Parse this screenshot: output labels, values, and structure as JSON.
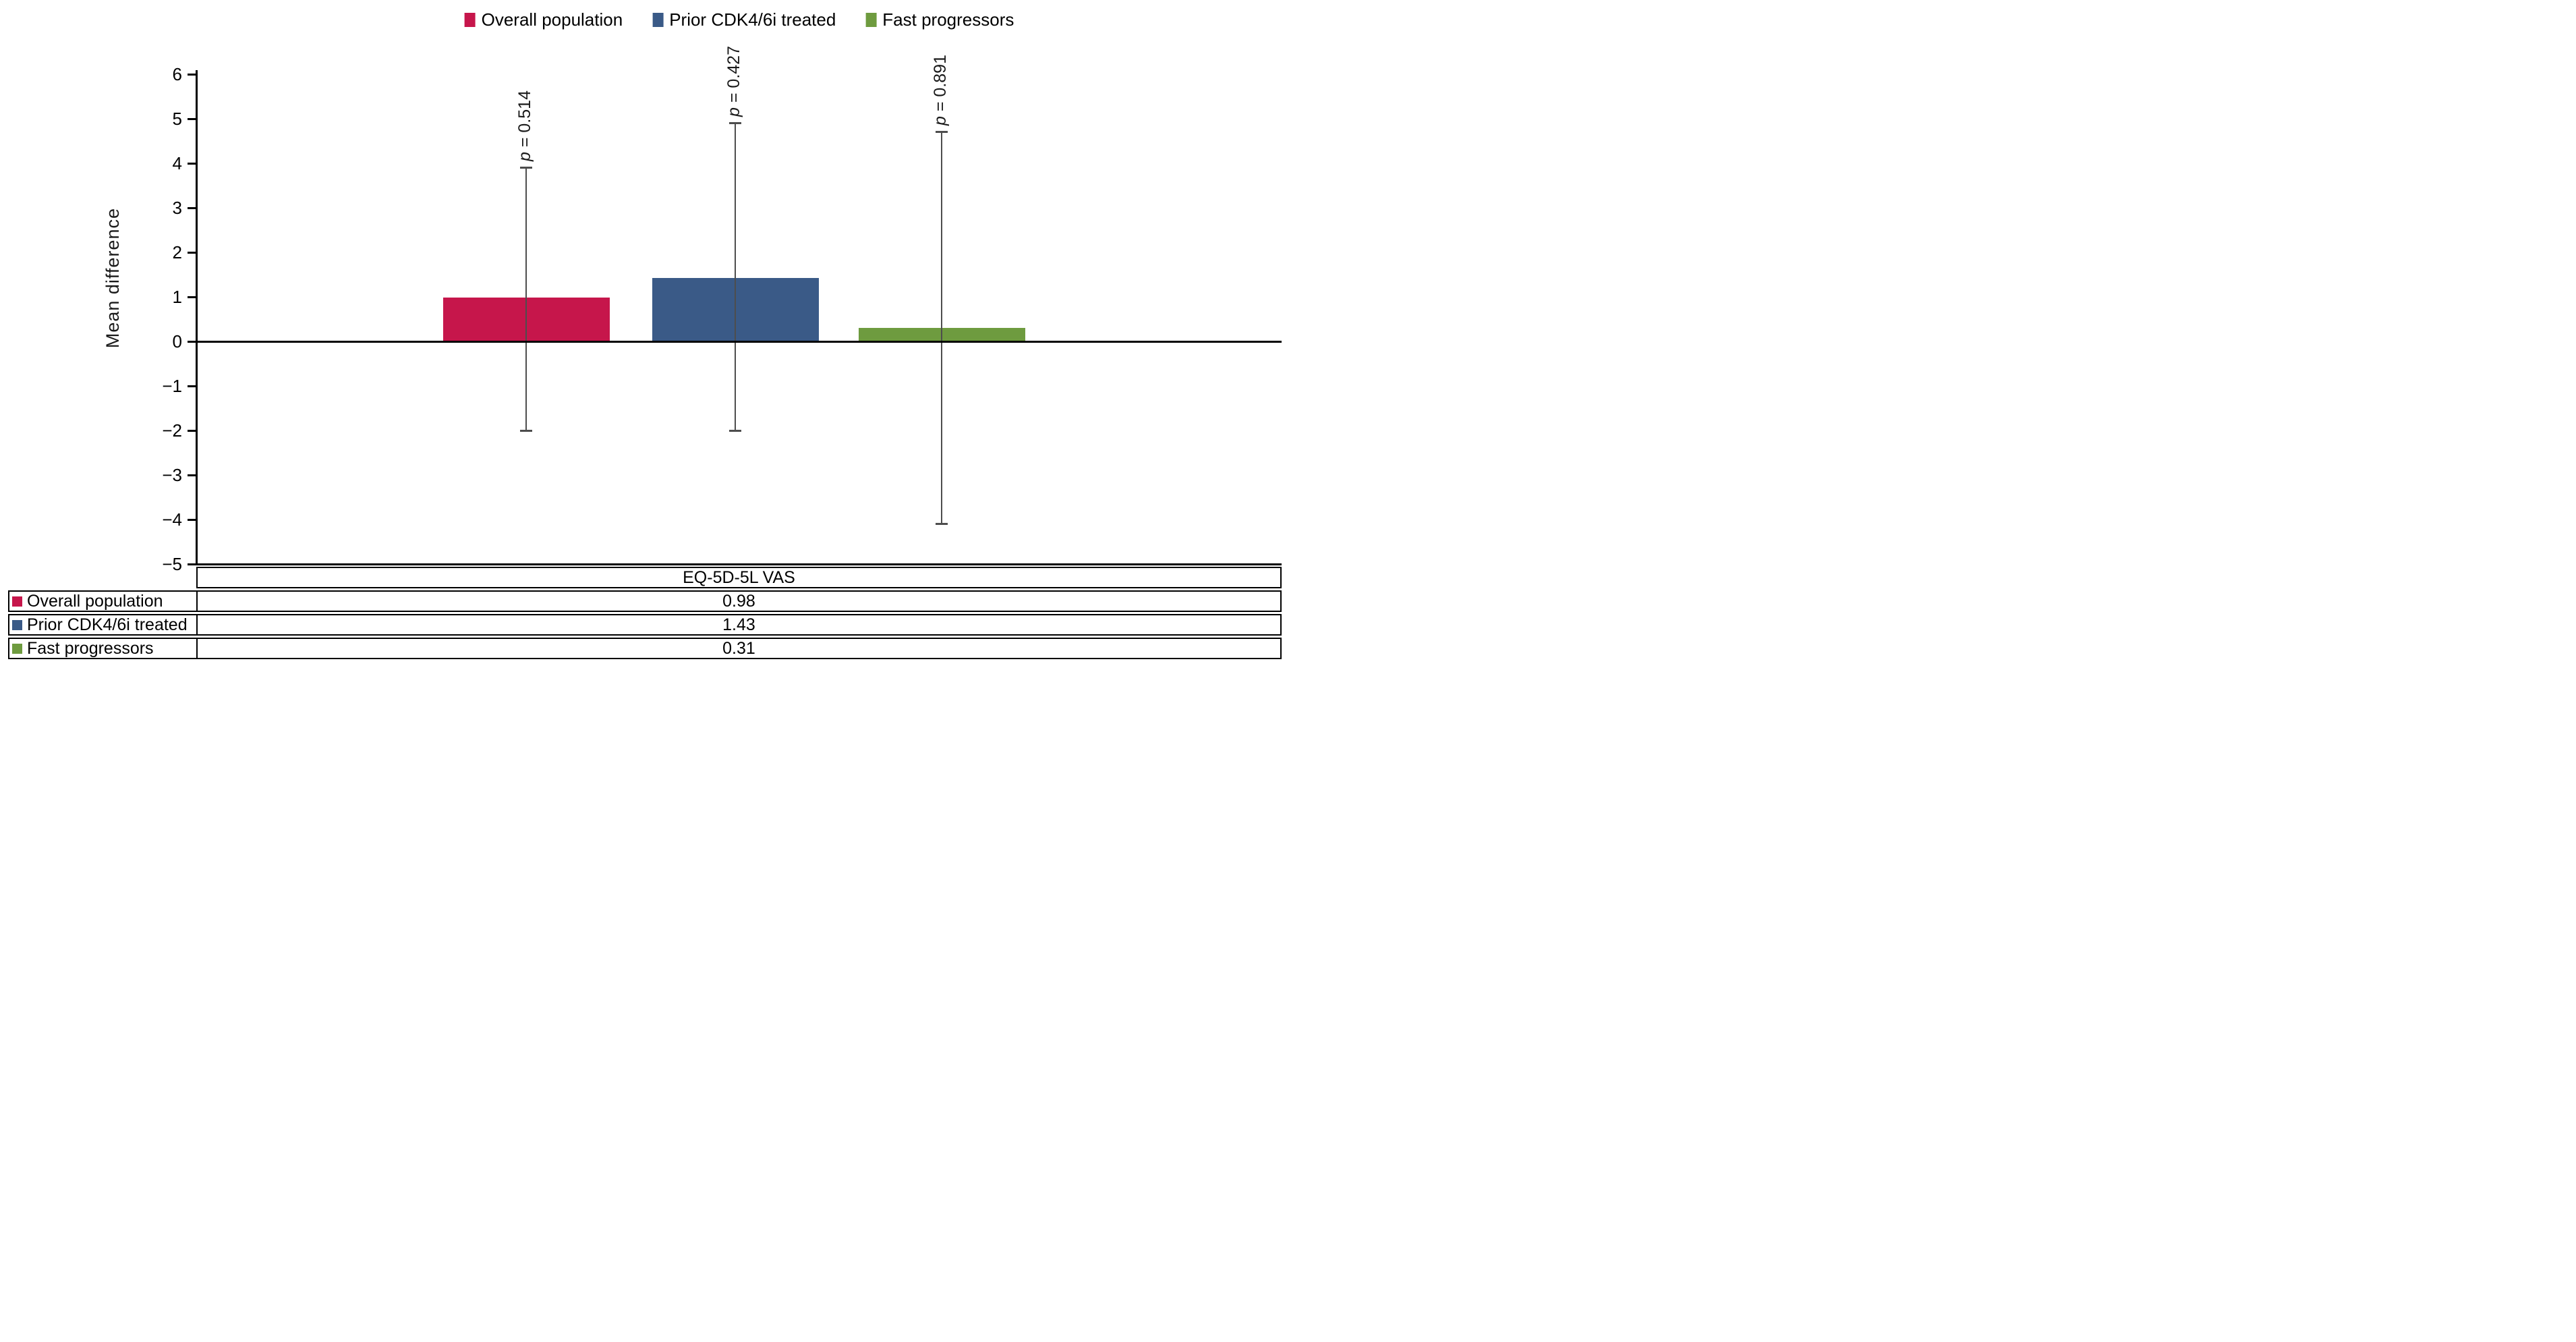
{
  "figure": {
    "ylabel": "Mean difference"
  },
  "legend": {
    "position": "top-center",
    "items": [
      {
        "label": "Overall population",
        "color": "#C6164B"
      },
      {
        "label": "Prior CDK4/6i treated",
        "color": "#3A5A87"
      },
      {
        "label": "Fast progressors",
        "color": "#6E9B3F"
      }
    ]
  },
  "chart_data": {
    "type": "bar",
    "title": "",
    "xlabel": "",
    "ylabel": "Mean difference",
    "ylim": [
      -5,
      6
    ],
    "yticks": [
      6,
      5,
      4,
      3,
      2,
      1,
      0,
      -1,
      -2,
      -3,
      -4,
      -5
    ],
    "ytick_labels": [
      "6",
      "5",
      "4",
      "3",
      "2",
      "1",
      "0",
      "−1",
      "−2",
      "−3",
      "−4",
      "−5"
    ],
    "grid": false,
    "legend_position": "top-center",
    "categories": [
      "EQ-5D-5L VAS"
    ],
    "series": [
      {
        "name": "Overall population",
        "color": "#C6164B",
        "value": 0.98,
        "ci_low": -2.0,
        "ci_high": 3.9,
        "p_value_label": "p = 0.514"
      },
      {
        "name": "Prior CDK4/6i treated",
        "color": "#3A5A87",
        "value": 1.43,
        "ci_low": -2.0,
        "ci_high": 4.9,
        "p_value_label": "p = 0.427"
      },
      {
        "name": "Fast progressors",
        "color": "#6E9B3F",
        "value": 0.31,
        "ci_low": -4.1,
        "ci_high": 4.7,
        "p_value_label": "p = 0.891"
      }
    ],
    "error_bar_color": "#4D4D4D"
  },
  "table": {
    "header": "EQ-5D-5L VAS",
    "rows": [
      {
        "label": "Overall population",
        "swatch_color": "#C6164B",
        "value": "0.98"
      },
      {
        "label": "Prior CDK4/6i treated",
        "swatch_color": "#3A5A87",
        "value": "1.43"
      },
      {
        "label": "Fast progressors",
        "swatch_color": "#6E9B3F",
        "value": "0.31"
      }
    ]
  }
}
